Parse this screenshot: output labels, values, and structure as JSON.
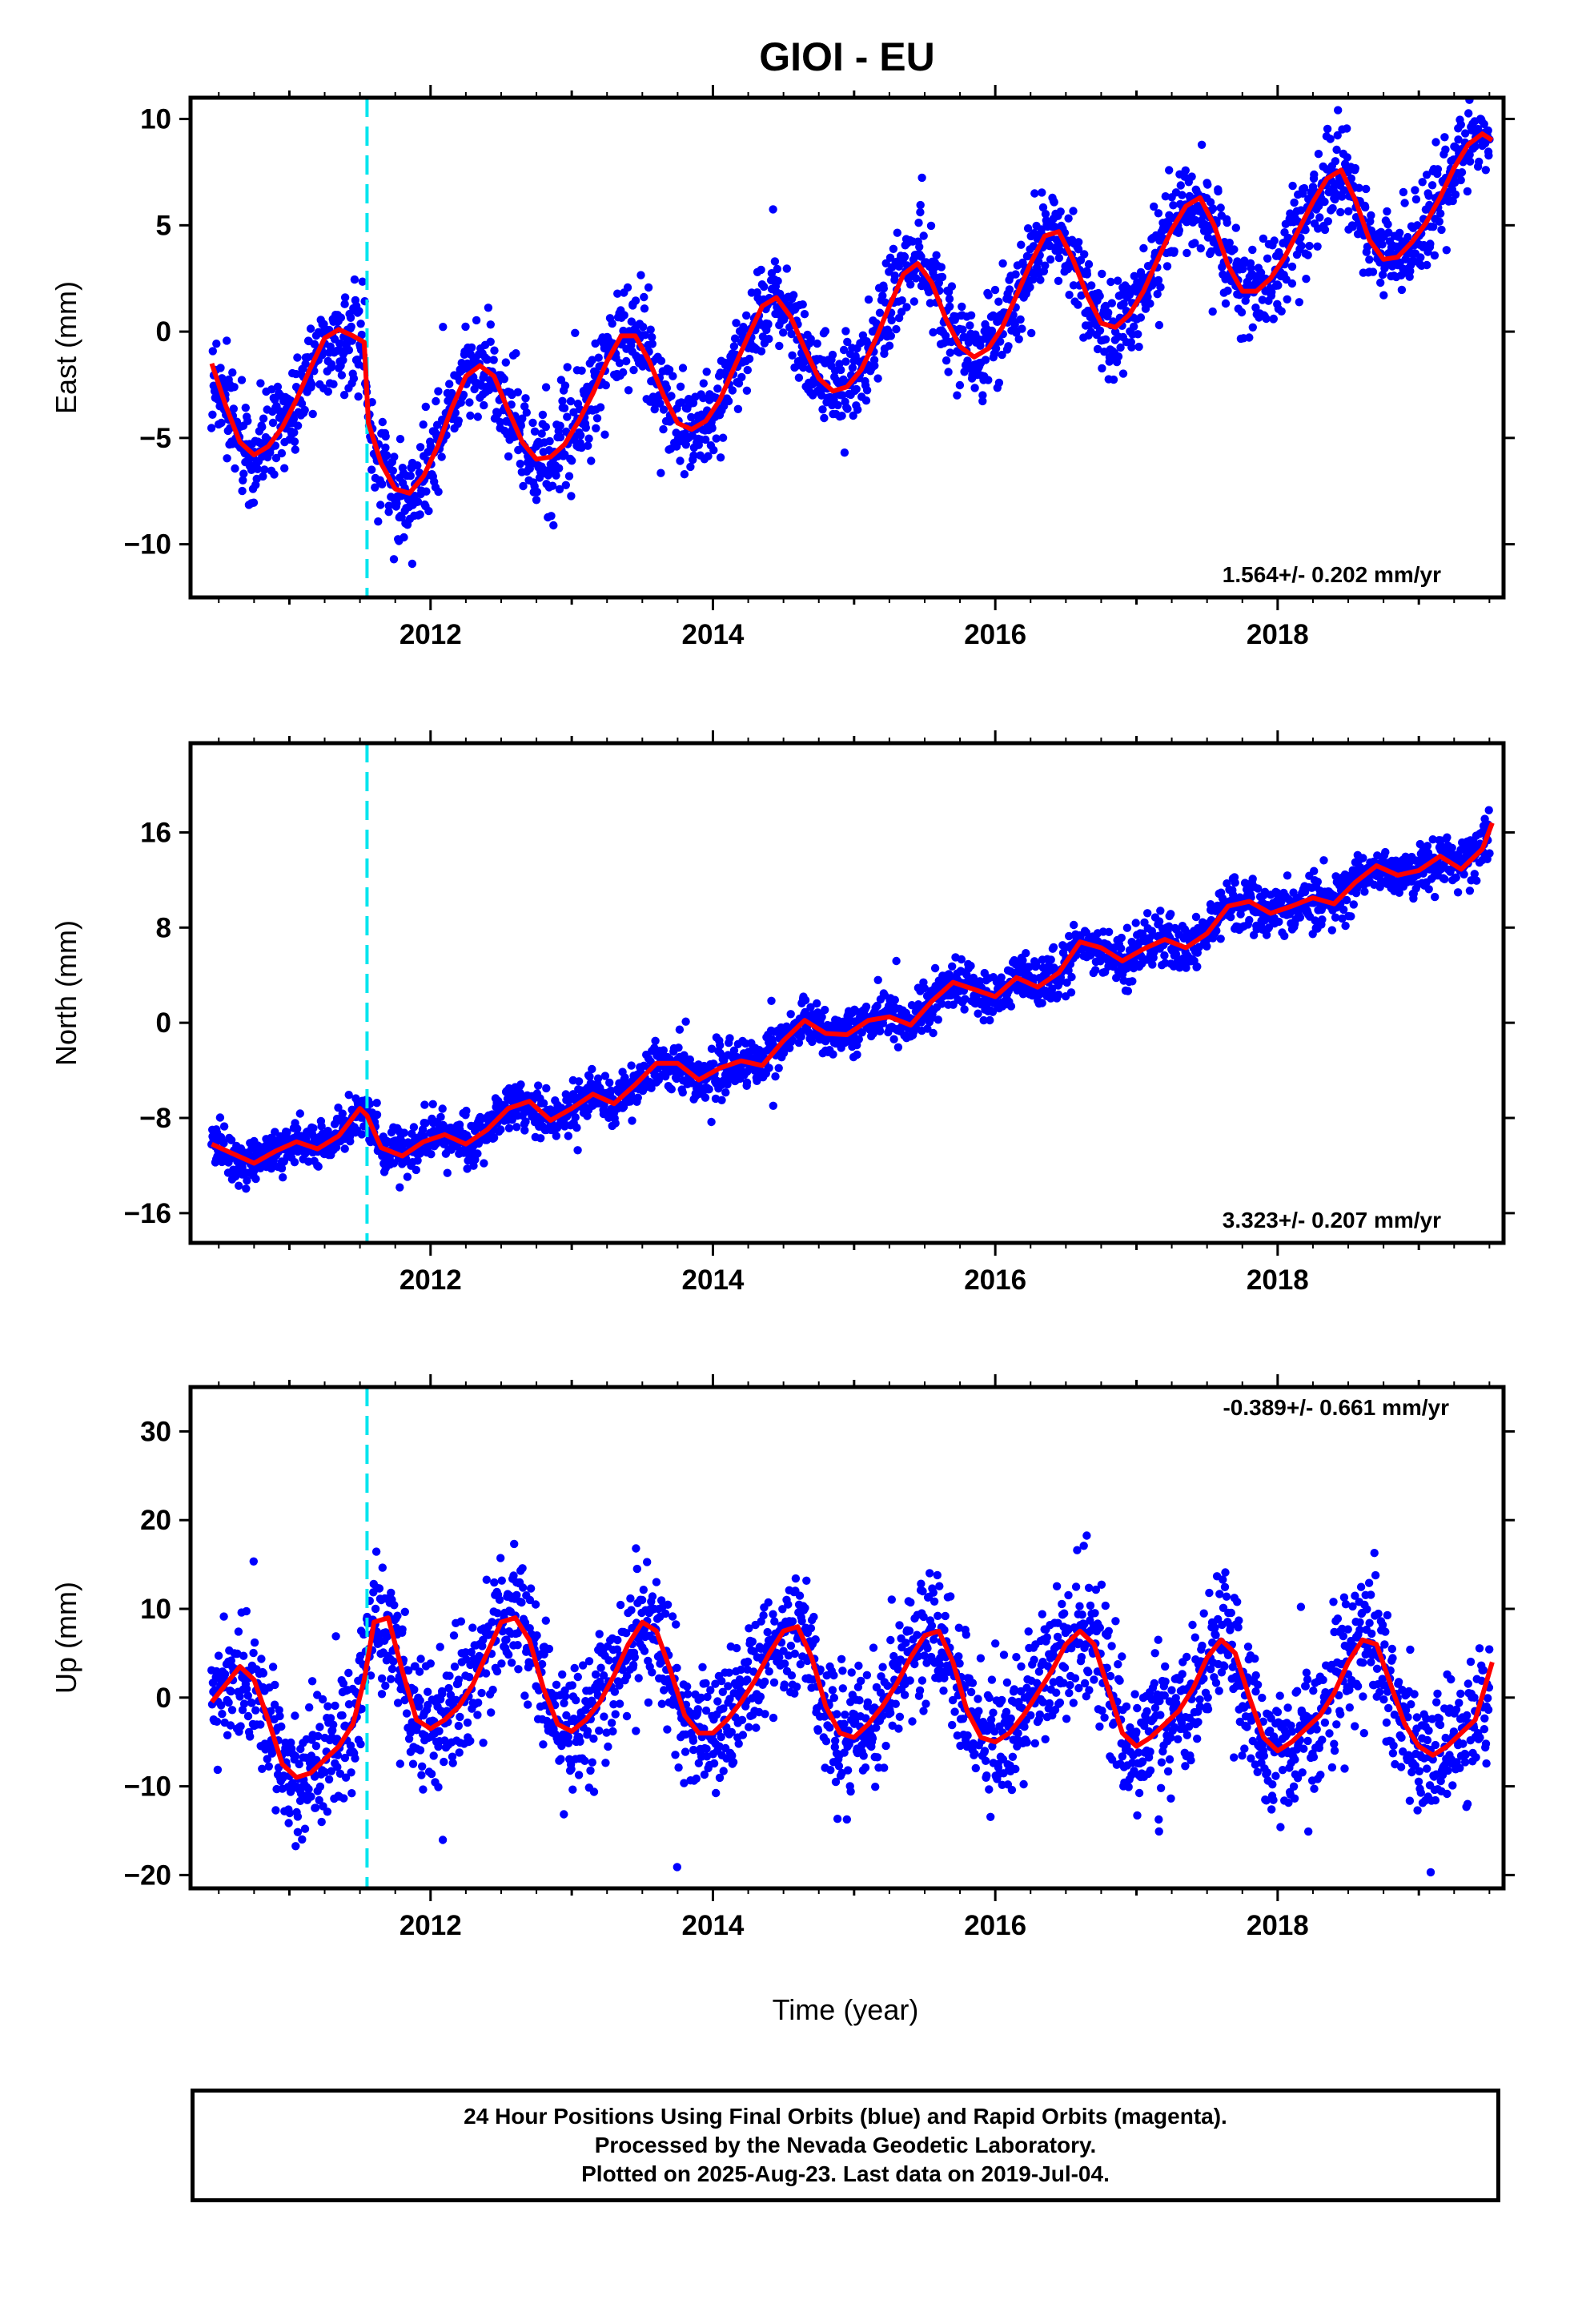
{
  "title": "GIOI - EU",
  "x_axis_title": "Time (year)",
  "footer": {
    "line1": "24 Hour Positions Using Final Orbits (blue) and Rapid Orbits (magenta).",
    "line2": "Processed by the Nevada Geodetic Laboratory.",
    "line3": "Plotted on 2025-Aug-23. Last data on 2019-Jul-04."
  },
  "colors": {
    "points": "#0000ff",
    "model": "#ff0000",
    "event_line": "#00e5ee",
    "frame": "#000000"
  },
  "chart_data": [
    {
      "type": "scatter",
      "name": "east",
      "ylabel": "East (mm)",
      "rate_text": "1.564+/- 0.202 mm/yr",
      "xlim": [
        2010.3,
        2019.6
      ],
      "ylim": [
        -12.5,
        11
      ],
      "yticks": [
        -10,
        -5,
        0,
        5,
        10
      ],
      "xticks": [
        2012,
        2014,
        2016,
        2018
      ],
      "event_x": 2011.55,
      "model": {
        "x": [
          2010.45,
          2010.55,
          2010.65,
          2010.75,
          2010.85,
          2010.95,
          2011.05,
          2011.15,
          2011.25,
          2011.35,
          2011.45,
          2011.53,
          2011.56,
          2011.65,
          2011.75,
          2011.85,
          2011.95,
          2012.05,
          2012.15,
          2012.25,
          2012.35,
          2012.45,
          2012.55,
          2012.65,
          2012.75,
          2012.85,
          2012.95,
          2013.05,
          2013.15,
          2013.25,
          2013.35,
          2013.45,
          2013.55,
          2013.65,
          2013.75,
          2013.85,
          2013.95,
          2014.05,
          2014.15,
          2014.25,
          2014.35,
          2014.45,
          2014.55,
          2014.65,
          2014.75,
          2014.85,
          2014.95,
          2015.05,
          2015.15,
          2015.25,
          2015.35,
          2015.45,
          2015.55,
          2015.65,
          2015.75,
          2015.85,
          2015.95,
          2016.05,
          2016.15,
          2016.25,
          2016.35,
          2016.45,
          2016.55,
          2016.65,
          2016.75,
          2016.85,
          2016.95,
          2017.05,
          2017.15,
          2017.25,
          2017.35,
          2017.45,
          2017.55,
          2017.65,
          2017.75,
          2017.85,
          2017.95,
          2018.05,
          2018.15,
          2018.25,
          2018.35,
          2018.45,
          2018.55,
          2018.65,
          2018.75,
          2018.85,
          2018.95,
          2019.05,
          2019.15,
          2019.25,
          2019.35,
          2019.45,
          2019.52
        ],
        "y": [
          -1.5,
          -3.5,
          -5.2,
          -5.8,
          -5.4,
          -4.5,
          -3.2,
          -1.7,
          -0.3,
          0.1,
          -0.2,
          -0.5,
          -4.3,
          -6.2,
          -7.4,
          -7.6,
          -6.8,
          -5.4,
          -3.6,
          -2.1,
          -1.6,
          -2.1,
          -3.7,
          -5.2,
          -6.0,
          -5.9,
          -5.3,
          -4.2,
          -2.9,
          -1.4,
          -0.2,
          -0.2,
          -1.4,
          -3.0,
          -4.3,
          -4.6,
          -4.2,
          -3.2,
          -1.7,
          -0.2,
          1.2,
          1.6,
          0.7,
          -0.8,
          -2.2,
          -2.8,
          -2.6,
          -1.8,
          -0.4,
          1.2,
          2.7,
          3.2,
          2.3,
          0.6,
          -0.7,
          -1.2,
          -0.8,
          0.2,
          1.7,
          3.2,
          4.5,
          4.7,
          3.4,
          1.7,
          0.4,
          0.2,
          0.8,
          1.9,
          3.4,
          4.8,
          5.9,
          6.3,
          5.0,
          3.1,
          1.9,
          1.9,
          2.5,
          3.5,
          4.8,
          6.1,
          7.2,
          7.6,
          6.2,
          4.3,
          3.4,
          3.5,
          4.2,
          5.1,
          6.3,
          7.7,
          8.8,
          9.3,
          9.0
        ]
      },
      "points_spec": {
        "start": 2010.45,
        "end": 2019.5,
        "count": 2400,
        "scatter_sd": 1.1
      }
    },
    {
      "type": "scatter",
      "name": "north",
      "ylabel": "North (mm)",
      "rate_text": "3.323+/- 0.207 mm/yr",
      "xlim": [
        2010.3,
        2019.6
      ],
      "ylim": [
        -18.5,
        23.5
      ],
      "yticks": [
        -16,
        -8,
        0,
        8,
        16
      ],
      "xticks": [
        2012,
        2014,
        2016,
        2018
      ],
      "event_x": 2011.55,
      "model": {
        "x": [
          2010.45,
          2010.6,
          2010.75,
          2010.9,
          2011.05,
          2011.2,
          2011.35,
          2011.5,
          2011.55,
          2011.65,
          2011.8,
          2011.95,
          2012.1,
          2012.25,
          2012.4,
          2012.55,
          2012.7,
          2012.85,
          2013.0,
          2013.15,
          2013.3,
          2013.45,
          2013.6,
          2013.75,
          2013.9,
          2014.05,
          2014.2,
          2014.35,
          2014.5,
          2014.65,
          2014.8,
          2014.95,
          2015.1,
          2015.25,
          2015.4,
          2015.55,
          2015.7,
          2015.85,
          2016.0,
          2016.15,
          2016.3,
          2016.45,
          2016.6,
          2016.75,
          2016.9,
          2017.05,
          2017.2,
          2017.35,
          2017.5,
          2017.65,
          2017.8,
          2017.95,
          2018.1,
          2018.25,
          2018.4,
          2018.55,
          2018.7,
          2018.85,
          2019.0,
          2019.15,
          2019.3,
          2019.45,
          2019.52
        ],
        "y": [
          -10.2,
          -11.0,
          -11.8,
          -10.8,
          -10.0,
          -10.6,
          -9.5,
          -7.2,
          -7.8,
          -10.5,
          -11.2,
          -10.0,
          -9.4,
          -10.2,
          -9.0,
          -7.2,
          -6.6,
          -8.2,
          -7.2,
          -6.0,
          -6.8,
          -5.2,
          -3.4,
          -3.4,
          -4.8,
          -3.8,
          -3.2,
          -3.6,
          -1.5,
          0.2,
          -0.9,
          -1.0,
          0.2,
          0.5,
          -0.2,
          1.8,
          3.4,
          2.8,
          2.2,
          3.8,
          3.0,
          4.2,
          6.8,
          6.3,
          5.2,
          6.2,
          7.0,
          6.3,
          7.5,
          9.8,
          10.2,
          9.2,
          9.8,
          10.5,
          10.0,
          11.8,
          13.2,
          12.4,
          12.8,
          14.0,
          12.9,
          14.6,
          16.8
        ]
      },
      "points_spec": {
        "start": 2010.45,
        "end": 2019.5,
        "count": 2400,
        "scatter_sd": 1.0
      }
    },
    {
      "type": "scatter",
      "name": "up",
      "ylabel": "Up (mm)",
      "rate_text": "-0.389+/- 0.661 mm/yr",
      "xlim": [
        2010.3,
        2019.6
      ],
      "ylim": [
        -21.5,
        35
      ],
      "yticks": [
        -20,
        -10,
        0,
        10,
        20,
        30
      ],
      "xticks": [
        2012,
        2014,
        2016,
        2018
      ],
      "event_x": 2011.55,
      "model": {
        "x": [
          2010.45,
          2010.55,
          2010.65,
          2010.75,
          2010.85,
          2010.95,
          2011.05,
          2011.15,
          2011.25,
          2011.35,
          2011.45,
          2011.53,
          2011.6,
          2011.7,
          2011.8,
          2011.9,
          2012.0,
          2012.1,
          2012.2,
          2012.3,
          2012.4,
          2012.5,
          2012.6,
          2012.7,
          2012.8,
          2012.9,
          2013.0,
          2013.1,
          2013.2,
          2013.3,
          2013.4,
          2013.5,
          2013.6,
          2013.7,
          2013.8,
          2013.9,
          2014.0,
          2014.1,
          2014.2,
          2014.3,
          2014.4,
          2014.5,
          2014.6,
          2014.7,
          2014.8,
          2014.9,
          2015.0,
          2015.1,
          2015.2,
          2015.3,
          2015.4,
          2015.5,
          2015.6,
          2015.7,
          2015.8,
          2015.9,
          2016.0,
          2016.1,
          2016.2,
          2016.3,
          2016.4,
          2016.5,
          2016.6,
          2016.7,
          2016.8,
          2016.9,
          2017.0,
          2017.1,
          2017.2,
          2017.3,
          2017.4,
          2017.5,
          2017.6,
          2017.7,
          2017.8,
          2017.9,
          2018.0,
          2018.1,
          2018.2,
          2018.3,
          2018.4,
          2018.5,
          2018.6,
          2018.7,
          2018.8,
          2018.9,
          2019.0,
          2019.1,
          2019.2,
          2019.3,
          2019.4,
          2019.52
        ],
        "y": [
          -0.5,
          1.5,
          3.5,
          2.0,
          -2.5,
          -7.5,
          -9.0,
          -8.5,
          -7.0,
          -5.5,
          -3.0,
          2.0,
          8.5,
          9.0,
          3.0,
          -2.5,
          -3.5,
          -2.5,
          -1.0,
          1.5,
          5.0,
          8.5,
          9.0,
          6.5,
          1.0,
          -3.0,
          -3.8,
          -2.5,
          -0.5,
          2.5,
          6.0,
          8.5,
          7.5,
          3.0,
          -2.0,
          -4.0,
          -4.0,
          -2.5,
          -0.5,
          2.0,
          5.0,
          7.5,
          8.0,
          4.5,
          -1.0,
          -4.0,
          -4.5,
          -3.0,
          -1.0,
          1.5,
          4.5,
          7.0,
          7.5,
          4.0,
          -1.5,
          -4.5,
          -5.0,
          -4.0,
          -2.0,
          0.5,
          3.0,
          6.0,
          7.5,
          6.0,
          1.0,
          -4.0,
          -5.5,
          -4.5,
          -3.0,
          -1.5,
          1.0,
          4.5,
          6.5,
          5.0,
          0.0,
          -4.5,
          -6.0,
          -5.0,
          -3.5,
          -2.0,
          0.5,
          4.0,
          6.5,
          6.0,
          1.5,
          -3.0,
          -5.5,
          -6.5,
          -5.5,
          -4.0,
          -2.5,
          4.0
        ]
      },
      "points_spec": {
        "start": 2010.45,
        "end": 2019.5,
        "count": 2400,
        "scatter_sd": 3.6
      }
    }
  ]
}
